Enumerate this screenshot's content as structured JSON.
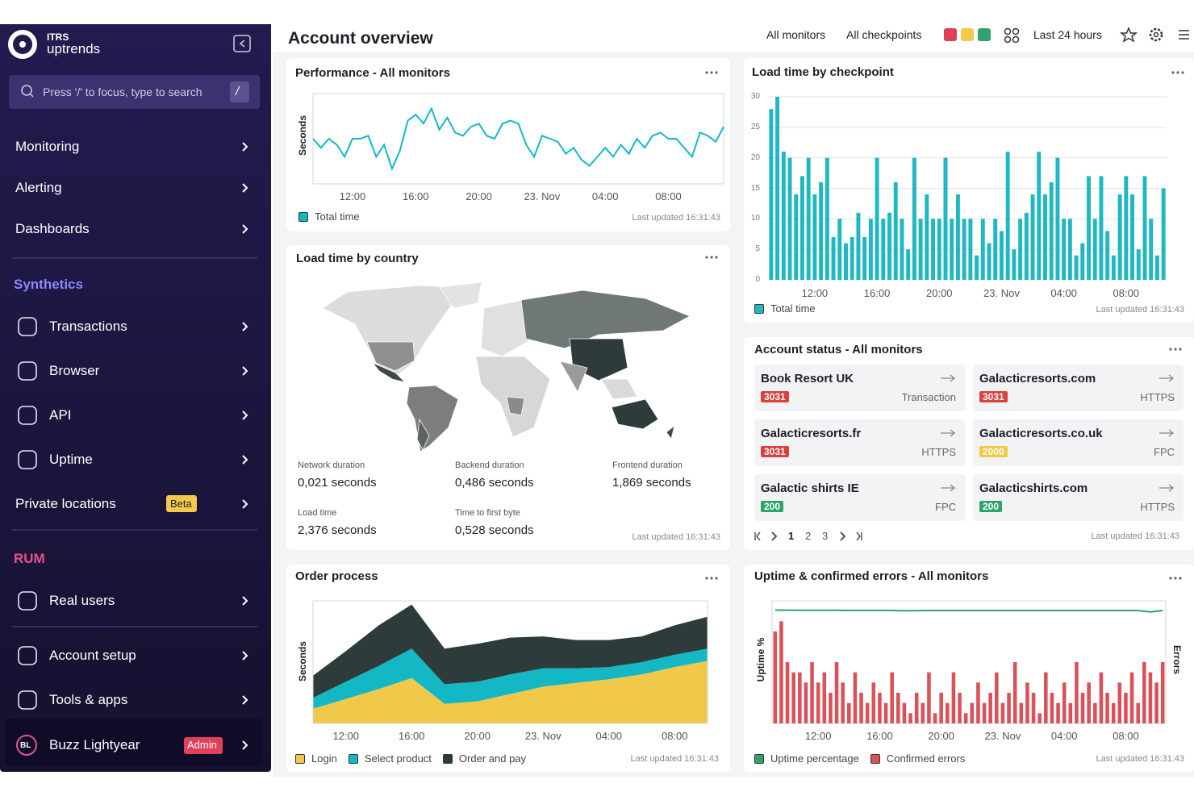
{
  "sidebar": {
    "brand_top": "ITRS",
    "brand": "uptrends",
    "search": "Press '/' to focus, type to search",
    "search_key": "/",
    "nav": [
      "Monitoring",
      "Alerting",
      "Dashboards"
    ],
    "sections": [
      {
        "title": "Synthetics",
        "items": [
          {
            "label": "Transactions"
          },
          {
            "label": "Browser"
          },
          {
            "label": "API"
          },
          {
            "label": "Uptime"
          },
          {
            "label": "Private locations",
            "badge": "Beta"
          }
        ]
      },
      {
        "title": "RUM",
        "items": [
          {
            "label": "Real users"
          }
        ]
      }
    ],
    "footer": [
      "Account setup",
      "Tools & apps"
    ],
    "user": {
      "initials": "BL",
      "name": "Buzz Lightyear",
      "badge": "Admin"
    }
  },
  "header": {
    "title": "Account overview",
    "links": [
      "All monitors",
      "All checkpoints",
      "Last 24 hours"
    ]
  },
  "chart_data": [
    {
      "type": "line",
      "title": "Performance - All monitors",
      "y_label": "Seconds",
      "updated": "Last updated 16:31:43",
      "categories": [
        null,
        null,
        null,
        null,
        null,
        "12:00",
        null,
        null,
        null,
        null,
        null,
        null,
        null,
        "16:00",
        null,
        null,
        null,
        null,
        null,
        null,
        null,
        "20:00",
        null,
        null,
        null,
        null,
        null,
        null,
        null,
        "23. Nov",
        null,
        null,
        null,
        null,
        null,
        null,
        null,
        "04:00",
        null,
        null,
        null,
        null,
        null,
        null,
        null,
        "08:00",
        null,
        null,
        null,
        null,
        null,
        null,
        null
      ],
      "ylim": [
        0,
        3
      ],
      "series": [
        {
          "name": "Total time",
          "color": "#14b8c4",
          "values": [
            1.5,
            1.2,
            1.5,
            1.3,
            0.9,
            1.5,
            1.5,
            1.6,
            0.9,
            1.3,
            0.5,
            1.1,
            2.1,
            2.3,
            2.0,
            2.5,
            1.8,
            2.2,
            1.7,
            1.6,
            1.9,
            2.0,
            1.6,
            1.5,
            2.0,
            2.1,
            2.0,
            1.3,
            0.9,
            1.6,
            1.5,
            1.4,
            1.0,
            1.2,
            0.8,
            0.6,
            0.9,
            1.2,
            0.9,
            1.3,
            1.0,
            1.5,
            1.2,
            1.6,
            1.7,
            1.5,
            1.5,
            1.2,
            0.9,
            1.7,
            1.6,
            1.4,
            1.9
          ]
        }
      ]
    },
    {
      "type": "bar",
      "title": "Load time by checkpoint",
      "updated": "Last updated 16:31:43",
      "categories": [
        null,
        null,
        null,
        null,
        null,
        null,
        null,
        "12:00",
        null,
        null,
        null,
        null,
        null,
        null,
        null,
        null,
        null,
        "16:00",
        null,
        null,
        null,
        null,
        null,
        null,
        null,
        null,
        null,
        "20:00",
        null,
        null,
        null,
        null,
        null,
        null,
        null,
        null,
        null,
        "23. Nov",
        null,
        null,
        null,
        null,
        null,
        null,
        null,
        null,
        null,
        "04:00",
        null,
        null,
        null,
        null,
        null,
        null,
        null,
        null,
        null,
        "08:00",
        null,
        null,
        null,
        null,
        null,
        null
      ],
      "ylim": [
        0,
        30
      ],
      "yticks": [
        0,
        5,
        10,
        15,
        20,
        25,
        30
      ],
      "grid": true,
      "series": [
        {
          "name": "Total time",
          "color": "#1fb8c2",
          "values": [
            28,
            30,
            21,
            20,
            14,
            17,
            20,
            14,
            16,
            20,
            7,
            10,
            6,
            7,
            11,
            7,
            10,
            20,
            10,
            11,
            16,
            10,
            5,
            20,
            10,
            14,
            10,
            10,
            20,
            10,
            14,
            10,
            10,
            4,
            10,
            6,
            10,
            8,
            21,
            5,
            10,
            11,
            14,
            21,
            14,
            16,
            20,
            10,
            10,
            4,
            6,
            17,
            10,
            17,
            8,
            4,
            14,
            17,
            14,
            5,
            17,
            10,
            4,
            15
          ]
        }
      ]
    },
    {
      "type": "area",
      "title": "Order process",
      "y_label": "Seconds",
      "updated": "Last updated 16:31:43",
      "categories": [
        null,
        "12:00",
        null,
        "16:00",
        null,
        "20:00",
        null,
        "23. Nov",
        null,
        "04:00",
        null,
        "08:00",
        null
      ],
      "ylim": [
        0,
        10
      ],
      "stacked": true,
      "series": [
        {
          "name": "Login",
          "color": "#f0c94a",
          "values": [
            1.2,
            2.0,
            2.8,
            3.7,
            1.6,
            1.8,
            2.4,
            3.0,
            3.3,
            3.6,
            4.0,
            4.6,
            5.1
          ]
        },
        {
          "name": "Select product",
          "color": "#14b8c4",
          "values": [
            0.9,
            1.4,
            1.9,
            2.4,
            1.6,
            1.6,
            1.6,
            1.5,
            1.2,
            1.0,
            1.0,
            1.0,
            1.0
          ]
        },
        {
          "name": "Order and pay",
          "color": "#2d3b3b",
          "values": [
            1.8,
            2.5,
            3.3,
            3.6,
            2.9,
            3.1,
            3.0,
            2.6,
            2.3,
            2.2,
            2.1,
            2.4,
            2.6
          ]
        }
      ]
    },
    {
      "type": "combo",
      "title": "Uptime & confirmed errors - All monitors",
      "y_label": "Uptime %",
      "y2_label": "Errors",
      "updated": "Last updated 16:31:43",
      "categories": [
        null,
        null,
        null,
        null,
        null,
        null,
        null,
        "12:00",
        null,
        null,
        null,
        null,
        null,
        null,
        null,
        null,
        null,
        "16:00",
        null,
        null,
        null,
        null,
        null,
        null,
        null,
        null,
        null,
        "20:00",
        null,
        null,
        null,
        null,
        null,
        null,
        null,
        null,
        null,
        "23. Nov",
        null,
        null,
        null,
        null,
        null,
        null,
        null,
        null,
        null,
        "04:00",
        null,
        null,
        null,
        null,
        null,
        null,
        null,
        null,
        null,
        "08:00",
        null,
        null,
        null,
        null,
        null,
        null
      ],
      "ylim": [
        0,
        100
      ],
      "y2lim": [
        0,
        12
      ],
      "series": [
        {
          "name": "Uptime percentage",
          "color": "#2ea36b",
          "kind": "line",
          "values": [
            92.5,
            92.4,
            92.4,
            92.4,
            92.3,
            92.3,
            92.3,
            92.3,
            92.3,
            92.3,
            92.3,
            92.2,
            92.2,
            92.2,
            92.2,
            92.2,
            92.2,
            92.2,
            92.2,
            92.2,
            92.0,
            91.9,
            91.9,
            92.0,
            92.1,
            92.1,
            92.1,
            92.1,
            92.1,
            92.1,
            92.1,
            92.1,
            92.1,
            92.1,
            92.1,
            92.1,
            92.1,
            92.1,
            92.1,
            92.1,
            92.1,
            92.1,
            92.1,
            92.1,
            92.1,
            92.1,
            92.1,
            92.1,
            92.1,
            92.1,
            92.1,
            92.1,
            92.1,
            92.1,
            92.1,
            92.1,
            92.1,
            92.1,
            92.1,
            92.1,
            91.5,
            91.0,
            91.5,
            92.2
          ]
        },
        {
          "name": "Confirmed errors",
          "color": "#d9525a",
          "kind": "bar",
          "axis": "y2",
          "values": [
            9,
            10,
            6,
            5,
            5,
            4,
            6,
            4,
            5,
            3,
            6,
            4,
            2,
            5,
            3,
            2,
            4,
            3,
            2,
            5,
            3,
            2,
            1,
            3,
            2,
            5,
            1,
            3,
            2,
            5,
            3,
            1,
            2,
            4,
            2,
            3,
            5,
            2,
            3,
            6,
            2,
            4,
            3,
            1,
            5,
            3,
            2,
            4,
            2,
            6,
            3,
            4,
            2,
            5,
            3,
            2,
            4,
            3,
            5,
            2,
            6,
            5,
            4,
            6
          ]
        }
      ]
    }
  ],
  "map": {
    "title": "Load time by country",
    "updated": "Last updated 16:31:43",
    "metrics": [
      {
        "label": "Network duration",
        "value": "0,021 seconds"
      },
      {
        "label": "Backend duration",
        "value": "0,486 seconds"
      },
      {
        "label": "Frontend duration",
        "value": "1,869 seconds"
      },
      {
        "label": "Load time",
        "value": "2,376 seconds"
      },
      {
        "label": "Time to first byte",
        "value": "0,528 seconds"
      }
    ]
  },
  "status": {
    "title": "Account status - All monitors",
    "updated": "Last updated 16:31:43",
    "pages": [
      "1",
      "2",
      "3"
    ],
    "cards": [
      {
        "name": "Book Resort UK",
        "code": "3031",
        "type": "Transaction",
        "color": "#d9413d"
      },
      {
        "name": "Galacticresorts.com",
        "code": "3031",
        "type": "HTTPS",
        "color": "#d9413d"
      },
      {
        "name": "Galacticresorts.fr",
        "code": "3031",
        "type": "HTTPS",
        "color": "#d9413d"
      },
      {
        "name": "Galacticresorts.co.uk",
        "code": "2000",
        "type": "FPC",
        "color": "#f0c94a"
      },
      {
        "name": "Galactic shirts IE",
        "code": "200",
        "type": "FPC",
        "color": "#2ea36b"
      },
      {
        "name": "Galacticshirts.com",
        "code": "200",
        "type": "HTTPS",
        "color": "#2ea36b"
      }
    ]
  }
}
